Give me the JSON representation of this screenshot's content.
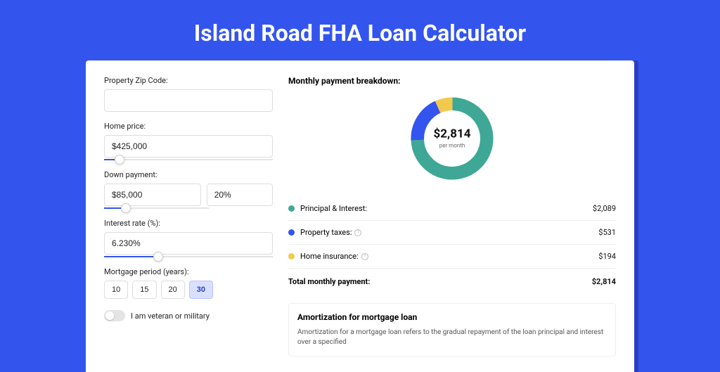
{
  "title": "Island Road FHA Loan Calculator",
  "colors": {
    "page_bg": "#3355ee",
    "card_bg": "#ffffff",
    "shadow": "#2b3fc2",
    "accent": "#3355ee"
  },
  "form": {
    "zip": {
      "label": "Property Zip Code:",
      "value": ""
    },
    "price": {
      "label": "Home price:",
      "value": "$425,000",
      "slider_pct": 9
    },
    "down": {
      "label": "Down payment:",
      "amount": "$85,000",
      "pct_value": "20%",
      "slider_pct": 21
    },
    "rate": {
      "label": "Interest rate (%):",
      "value": "6.230%",
      "slider_pct": 32
    },
    "period": {
      "label": "Mortgage period (years):",
      "options": [
        "10",
        "15",
        "20",
        "30"
      ],
      "selected": "30"
    },
    "veteran": {
      "label": "I am veteran or military",
      "on": false
    }
  },
  "breakdown": {
    "title": "Monthly payment breakdown:",
    "donut": {
      "amount": "$2,814",
      "sub": "per month",
      "slices": [
        {
          "key": "pi",
          "color": "#3fa796",
          "pct": 74.2
        },
        {
          "key": "tax",
          "color": "#3355ee",
          "pct": 18.9
        },
        {
          "key": "ins",
          "color": "#f2c94c",
          "pct": 6.9
        }
      ]
    },
    "rows": [
      {
        "dot": "#3fa796",
        "label": "Principal & Interest:",
        "value": "$2,089",
        "info": false
      },
      {
        "dot": "#3355ee",
        "label": "Property taxes:",
        "value": "$531",
        "info": true
      },
      {
        "dot": "#f2c94c",
        "label": "Home insurance:",
        "value": "$194",
        "info": true
      }
    ],
    "total": {
      "label": "Total monthly payment:",
      "value": "$2,814"
    }
  },
  "amort": {
    "title": "Amortization for mortgage loan",
    "text": "Amortization for a mortgage loan refers to the gradual repayment of the loan principal and interest over a specified"
  }
}
